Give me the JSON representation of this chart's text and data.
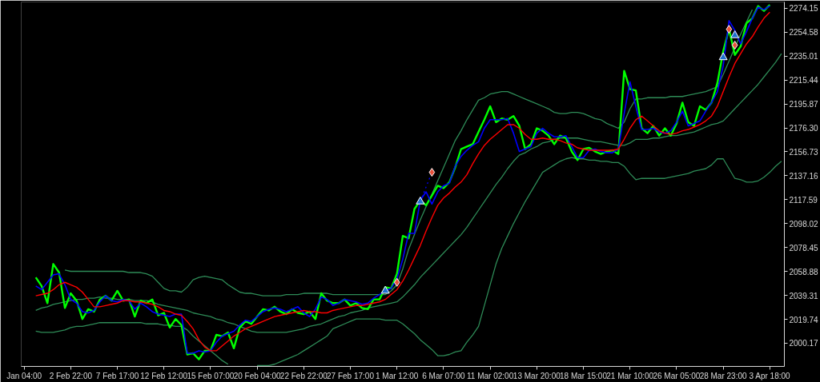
{
  "chart_data": {
    "type": "line",
    "categories": [
      "Jan 04:00",
      null,
      null,
      null,
      null,
      null,
      null,
      null,
      "2 Feb 22:00",
      null,
      null,
      null,
      null,
      null,
      null,
      null,
      "7 Feb 17:00",
      null,
      null,
      null,
      null,
      null,
      null,
      null,
      "12 Feb 12:00",
      null,
      null,
      null,
      null,
      null,
      null,
      null,
      "15 Feb 07:00",
      null,
      null,
      null,
      null,
      null,
      null,
      null,
      "20 Feb 04:00",
      null,
      null,
      null,
      null,
      null,
      null,
      null,
      "22 Feb 22:00",
      null,
      null,
      null,
      null,
      null,
      null,
      null,
      "27 Feb 17:00",
      null,
      null,
      null,
      null,
      null,
      null,
      null,
      "1 Mar 12:00",
      null,
      null,
      null,
      null,
      null,
      null,
      null,
      "6 Mar 07:00",
      null,
      null,
      null,
      null,
      null,
      null,
      null,
      "11 Mar 02:00",
      null,
      null,
      null,
      null,
      null,
      null,
      null,
      "13 Mar 20:00",
      null,
      null,
      null,
      null,
      null,
      null,
      null,
      "18 Mar 15:00",
      null,
      null,
      null,
      null,
      null,
      null,
      null,
      "21 Mar 10:00",
      null,
      null,
      null,
      null,
      null,
      null,
      null,
      "26 Mar 05:00",
      null,
      null,
      null,
      null,
      null,
      null,
      null,
      "28 Mar 23:00",
      null,
      null,
      null,
      null,
      null,
      null,
      null,
      "3 Apr 18:00",
      null,
      null
    ],
    "ylim": [
      1981.2,
      2279.3
    ],
    "yticks": [
      2000.17,
      2019.74,
      2039.31,
      2058.88,
      2078.45,
      2098.02,
      2117.59,
      2137.16,
      2156.73,
      {
        "value": 2176.3,
        "label": "2176.30"
      },
      2195.87,
      2215.44,
      2235.01,
      2254.58,
      2274.15
    ],
    "series": [
      {
        "color": "#2e8b57",
        "values": [
          null,
          null,
          null,
          null,
          null,
          null,
          null,
          2060,
          2059,
          2059,
          2059,
          2059,
          2059,
          2059,
          2059,
          2059,
          2059,
          2059,
          2058,
          2058,
          2058,
          2057,
          2055,
          2050,
          2045,
          2043,
          2043,
          2042,
          2046,
          2052,
          2054,
          2055,
          2054,
          2053,
          2052,
          2048,
          2045,
          2042,
          2041,
          2041,
          2040,
          2039,
          2039,
          2039,
          2039,
          2040,
          2040,
          2040,
          2041,
          2041,
          2041,
          2041,
          2041,
          2040,
          2040,
          2040,
          2040,
          2040,
          2040,
          2040,
          2040,
          2040,
          2040,
          2043,
          2048,
          2061,
          2077,
          2089,
          2101,
          2112,
          2122,
          2133,
          2144,
          2155,
          2166,
          2174,
          2183,
          2191,
          2199,
          2201,
          2204,
          2205,
          2206,
          2206,
          2204,
          2202,
          2200,
          2198,
          2196,
          2194,
          2192,
          2189,
          2188,
          2188,
          2189,
          2189,
          2188,
          2186,
          2184,
          2183,
          2180,
          2178,
          2176,
          2181,
          2192,
          2200,
          2200,
          2201,
          2201,
          2201,
          2201,
          2202,
          2202,
          2202,
          2203,
          2204,
          2205,
          2206,
          2208,
          2210,
          2220,
          2231,
          2242,
          2253,
          2263,
          2273,
          null,
          null,
          null,
          null,
          null
        ]
      },
      {
        "color": "#2e8b57",
        "values": [
          null,
          null,
          2027,
          2029,
          2030,
          2032,
          2033,
          2034,
          2035,
          2036,
          2036,
          2037,
          2037,
          2038,
          2037,
          2037,
          2036,
          2036,
          2036,
          2035,
          2035,
          2035,
          2034,
          2032,
          2031,
          2030,
          2029,
          2028,
          2027,
          2025,
          2024,
          2023,
          2022,
          2020,
          2019,
          2017,
          2016,
          2014,
          2012,
          2010,
          2009,
          2009,
          2009,
          2009,
          2009,
          2009,
          2010,
          2011,
          2012,
          2014,
          2015,
          2016,
          2018,
          2020,
          2022,
          2023,
          2025,
          2026,
          2027,
          2029,
          2030,
          2031,
          2032,
          2033,
          2034,
          2038,
          2043,
          2048,
          2054,
          2059,
          2064,
          2069,
          2074,
          2079,
          2084,
          2089,
          2095,
          2102,
          2109,
          2116,
          2123,
          2130,
          2136,
          2143,
          2149,
          2154,
          2156,
          2159,
          2161,
          2164,
          2165,
          2167,
          2168,
          2168,
          2168,
          2168,
          2167,
          2166,
          2165,
          2165,
          2164,
          2163,
          2162,
          2162,
          2164,
          2167,
          2167,
          2167,
          2168,
          2168,
          2169,
          2170,
          2170,
          2171,
          2172,
          2173,
          2175,
          2177,
          2179,
          2180,
          2182,
          2187,
          2192,
          2197,
          2202,
          2207,
          2212,
          2218,
          2224,
          2230,
          2237
        ]
      },
      {
        "color": "#2e8b57",
        "values": [
          null,
          null,
          2010,
          2009,
          2009,
          2009,
          2010,
          2011,
          2013,
          2014,
          2014,
          2015,
          2016,
          2017,
          2017,
          2017,
          2017,
          2017,
          2017,
          2017,
          2017,
          2016,
          2016,
          2016,
          2015,
          2015,
          2014,
          2014,
          2011,
          2006,
          2002,
          1998,
          1994,
          1990,
          1986,
          1983,
          null,
          null,
          null,
          null,
          1982,
          1982,
          1982,
          1983,
          1985,
          1987,
          1989,
          1991,
          1994,
          1997,
          2000,
          2003,
          2006,
          2012,
          2014,
          2016,
          2018,
          2020,
          2020,
          2020,
          2020,
          2020,
          2019,
          2019,
          2019,
          2016,
          2012,
          2008,
          2003,
          1999,
          1995,
          1990,
          1990,
          1991,
          1993,
          1994,
          2001,
          2007,
          2014,
          2031,
          2048,
          2065,
          2078,
          2088,
          2098,
          2107,
          2116,
          2124,
          2132,
          2140,
          2143,
          2146,
          2149,
          2151,
          2152,
          2151,
          2151,
          2150,
          2150,
          2149,
          2149,
          2148,
          2148,
          2145,
          2139,
          2134,
          2135,
          2135,
          2135,
          2135,
          2135,
          2136,
          2137,
          2138,
          2139,
          2141,
          2142,
          2143,
          2146,
          2151,
          2151,
          2143,
          2135,
          2134,
          2132,
          2132,
          2133,
          2136,
          2140,
          2145,
          2149
        ]
      },
      {
        "color": "#00ff00",
        "values": [
          null,
          null,
          2054,
          2047,
          2033,
          2065,
          2058,
          2029,
          2041,
          2035,
          2020,
          2028,
          2026,
          2036,
          2039,
          2035,
          2043,
          2035,
          2036,
          2022,
          2035,
          2033,
          2036,
          2023,
          2025,
          2013,
          2020,
          2015,
          1991,
          1992,
          1987,
          1994,
          1994,
          2007,
          2006,
          2009,
          1996,
          2013,
          2018,
          2016,
          2022,
          2028,
          2027,
          2030,
          2026,
          2024,
          2028,
          2025,
          2024,
          2026,
          2020,
          2041,
          2035,
          2033,
          2033,
          2036,
          2031,
          2033,
          2029,
          2028,
          2036,
          2036,
          2046,
          2045,
          2057,
          2088,
          2086,
          2110,
          2117,
          2113,
          2121,
          2129,
          2127,
          2132,
          2144,
          2159,
          2161,
          2163,
          2173,
          2183,
          2194,
          2181,
          2184,
          2183,
          2186,
          2178,
          2159,
          2163,
          2176,
          2174,
          2170,
          2163,
          2170,
          2168,
          2157,
          2150,
          2159,
          2160,
          2157,
          2155,
          2157,
          2158,
          2155,
          2223,
          2208,
          2207,
          2176,
          2172,
          2178,
          2170,
          2176,
          2170,
          2180,
          2197,
          2181,
          2178,
          2194,
          2191,
          2197,
          2213,
          2239,
          2257,
          2236,
          2243,
          2262,
          2266,
          2276,
          2272,
          2277,
          null,
          null
        ]
      },
      {
        "color": "#0000ff",
        "values": [
          null,
          null,
          2047,
          2044,
          2050,
          2056,
          2057,
          2048,
          2036,
          2033,
          2026,
          2025,
          2027,
          2034,
          2039,
          2035,
          2034,
          2036,
          2035,
          2028,
          2033,
          2030,
          2026,
          2024,
          2023,
          2022,
          2024,
          2024,
          1992,
          1992,
          1994,
          1993,
          1994,
          2001,
          2006,
          2008,
          2010,
          2015,
          2019,
          2018,
          2022,
          2026,
          2028,
          2029,
          2028,
          2026,
          2028,
          2030,
          2025,
          2022,
          2028,
          2038,
          2036,
          2031,
          2033,
          2036,
          2035,
          2034,
          2032,
          2033,
          2037,
          2040,
          2043,
          2045,
          2053,
          2069,
          2090,
          2090,
          2117,
          2124,
          2114,
          2124,
          2129,
          2131,
          2145,
          2153,
          2158,
          2162,
          2165,
          2176,
          2183,
          2183,
          2183,
          2184,
          2172,
          2157,
          2159,
          2161,
          2172,
          2176,
          2172,
          2169,
          2169,
          2170,
          2161,
          2152,
          2152,
          2158,
          2159,
          2157,
          2156,
          2156,
          2159,
          2188,
          2214,
          2194,
          2175,
          2175,
          2176,
          2173,
          2172,
          2174,
          2181,
          2190,
          2178,
          2180,
          2182,
          2190,
          2197,
          2206,
          2227,
          2264,
          2256,
          2245,
          2255,
          2266,
          2275,
          2273,
          2276,
          null,
          null
        ]
      },
      {
        "color": "#ff0000",
        "values": [
          null,
          null,
          2039,
          2040,
          2041,
          2044,
          2048,
          2050,
          2048,
          2046,
          2042,
          2036,
          2030,
          2030,
          2031,
          2032,
          2033,
          2035,
          2035,
          2034,
          2034,
          2033,
          2032,
          2030,
          2027,
          2026,
          2024,
          2023,
          2018,
          2012,
          2003,
          1997,
          1994,
          1994,
          1998,
          2002,
          2006,
          2009,
          2012,
          2014,
          2016,
          2018,
          2020,
          2022,
          2023,
          2024,
          2025,
          2026,
          2027,
          2026,
          2026,
          2025,
          2025,
          2027,
          2028,
          2029,
          2030,
          2031,
          2031,
          2032,
          2033,
          2034,
          2036,
          2040,
          2044,
          2051,
          2060,
          2070,
          2080,
          2092,
          2103,
          2113,
          2119,
          2123,
          2128,
          2132,
          2138,
          2147,
          2155,
          2162,
          2167,
          2171,
          2175,
          2179,
          2179,
          2176,
          2171,
          2167,
          2167,
          2168,
          2167,
          2167,
          2166,
          2164,
          2163,
          2160,
          2159,
          2158,
          2158,
          2158,
          2158,
          2158,
          2159,
          2167,
          2176,
          2183,
          2186,
          2182,
          2178,
          2174,
          2172,
          2171,
          2172,
          2174,
          2175,
          2177,
          2179,
          2182,
          2186,
          2194,
          2206,
          2218,
          2229,
          2237,
          2245,
          2251,
          2259,
          2266,
          2271,
          null,
          null
        ]
      },
      {
        "color": "#0000ff",
        "line_style": "dotted",
        "values": [
          null,
          null,
          null,
          null,
          null,
          null,
          null,
          null,
          null,
          null,
          null,
          null,
          null,
          null,
          null,
          null,
          null,
          null,
          null,
          null,
          null,
          null,
          null,
          null,
          null,
          null,
          null,
          null,
          null,
          null,
          null,
          null,
          null,
          null,
          null,
          null,
          null,
          null,
          null,
          null,
          null,
          null,
          null,
          null,
          null,
          null,
          null,
          null,
          null,
          null,
          null,
          null,
          null,
          null,
          null,
          null,
          null,
          null,
          null,
          null,
          null,
          null,
          null,
          null,
          null,
          null,
          null,
          null,
          2116,
          2128,
          2140,
          null,
          null,
          null,
          null,
          null,
          null,
          null,
          null,
          null,
          null,
          null,
          null,
          null,
          null,
          null,
          null,
          null,
          null,
          null,
          null,
          null,
          null,
          null,
          null,
          null,
          null,
          null,
          null,
          null,
          null,
          null,
          null,
          null,
          null,
          null,
          null,
          null,
          null,
          null,
          null,
          null,
          null,
          null,
          null,
          null,
          null,
          null,
          null,
          null,
          null,
          null,
          null,
          null,
          null,
          null,
          null,
          null,
          null,
          null,
          null
        ]
      },
      {
        "type": "scatter",
        "marker": "triangle",
        "color": "#1f6fd0",
        "values": [
          null,
          null,
          null,
          null,
          null,
          null,
          null,
          null,
          null,
          null,
          null,
          null,
          null,
          null,
          null,
          null,
          null,
          null,
          null,
          null,
          null,
          null,
          null,
          null,
          null,
          null,
          null,
          null,
          null,
          null,
          null,
          null,
          null,
          null,
          null,
          null,
          null,
          null,
          null,
          null,
          null,
          null,
          null,
          null,
          null,
          null,
          null,
          null,
          null,
          null,
          null,
          null,
          null,
          null,
          null,
          null,
          null,
          null,
          null,
          null,
          null,
          null,
          2043,
          null,
          null,
          null,
          null,
          null,
          2116,
          null,
          null,
          null,
          null,
          null,
          null,
          null,
          null,
          null,
          null,
          null,
          null,
          null,
          null,
          null,
          null,
          null,
          null,
          null,
          null,
          null,
          null,
          null,
          null,
          null,
          null,
          null,
          null,
          null,
          null,
          null,
          null,
          null,
          null,
          null,
          null,
          null,
          null,
          null,
          null,
          null,
          null,
          null,
          null,
          null,
          null,
          null,
          null,
          null,
          null,
          null,
          2234,
          null,
          2252,
          null,
          null,
          null,
          null,
          null,
          null,
          null,
          null
        ]
      },
      {
        "type": "scatter",
        "marker": "diamond",
        "color": "#e8503a",
        "values": [
          null,
          null,
          null,
          null,
          null,
          null,
          null,
          null,
          null,
          null,
          null,
          null,
          null,
          null,
          null,
          null,
          null,
          null,
          null,
          null,
          null,
          null,
          null,
          null,
          null,
          null,
          null,
          null,
          null,
          null,
          null,
          null,
          null,
          null,
          null,
          null,
          null,
          null,
          null,
          null,
          null,
          null,
          null,
          null,
          null,
          null,
          null,
          null,
          null,
          null,
          null,
          null,
          null,
          null,
          null,
          null,
          null,
          null,
          null,
          null,
          null,
          null,
          null,
          null,
          2050,
          null,
          null,
          null,
          null,
          null,
          2140,
          null,
          null,
          null,
          null,
          null,
          null,
          null,
          null,
          null,
          null,
          null,
          null,
          null,
          null,
          null,
          null,
          null,
          null,
          null,
          null,
          null,
          null,
          null,
          null,
          null,
          null,
          null,
          null,
          null,
          null,
          null,
          null,
          null,
          null,
          null,
          null,
          null,
          null,
          null,
          null,
          null,
          null,
          null,
          null,
          null,
          null,
          null,
          null,
          null,
          null,
          2257,
          2244,
          null,
          null,
          null,
          null,
          null,
          null,
          null,
          null
        ]
      }
    ]
  }
}
